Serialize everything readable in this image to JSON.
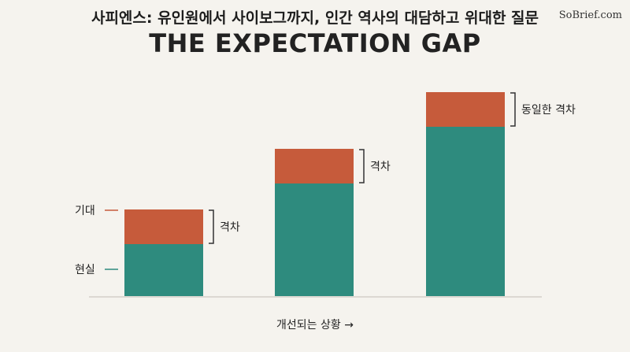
{
  "header": {
    "title": "사피엔스: 유인원에서 사이보그까지, 인간 역사의 대담하고 위대한 질문",
    "brand": "SoBrief.com"
  },
  "chart_data": {
    "type": "bar",
    "title": "THE EXPECTATION GAP",
    "xlabel": "개선되는 상황 →",
    "ylabel": "",
    "stacked": true,
    "categories": [
      "",
      "",
      ""
    ],
    "series": [
      {
        "name": "현실",
        "values": [
          66,
          143,
          215
        ],
        "color": "#2e8b7e"
      },
      {
        "name": "기대",
        "values": [
          44,
          44,
          44
        ],
        "color": "#c65b3b"
      }
    ],
    "ylim": [
      0,
      260
    ],
    "bracket_labels": [
      "격차",
      "격차",
      "동일한 격차"
    ],
    "grid": false
  }
}
